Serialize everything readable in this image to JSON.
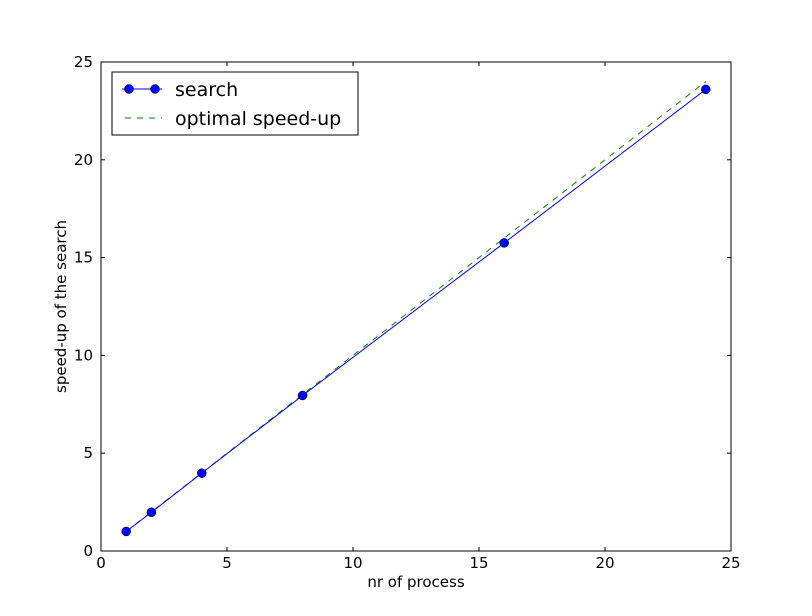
{
  "chart_data": {
    "type": "line",
    "title": "",
    "xlabel": "nr of process",
    "ylabel": "speed-up of the search",
    "xlim": [
      0,
      25
    ],
    "ylim": [
      0,
      25
    ],
    "xticks": [
      0,
      5,
      10,
      15,
      20,
      25
    ],
    "yticks": [
      0,
      5,
      10,
      15,
      20,
      25
    ],
    "xtick_labels": [
      "0",
      "5",
      "10",
      "15",
      "20",
      "25"
    ],
    "ytick_labels": [
      "0",
      "5",
      "10",
      "15",
      "20",
      "25"
    ],
    "grid": false,
    "legend_position": "top-left",
    "series": [
      {
        "name": "search",
        "color": "#0000ff",
        "style": "solid-with-circle-markers",
        "x": [
          1,
          2,
          4,
          8,
          16,
          24
        ],
        "y": [
          1.0,
          1.98,
          3.98,
          7.95,
          15.75,
          23.6
        ]
      },
      {
        "name": "optimal speed-up",
        "color": "#008000",
        "style": "dashed",
        "x": [
          1,
          2,
          4,
          8,
          16,
          24
        ],
        "y": [
          1,
          2,
          4,
          8,
          16,
          24
        ]
      }
    ]
  }
}
